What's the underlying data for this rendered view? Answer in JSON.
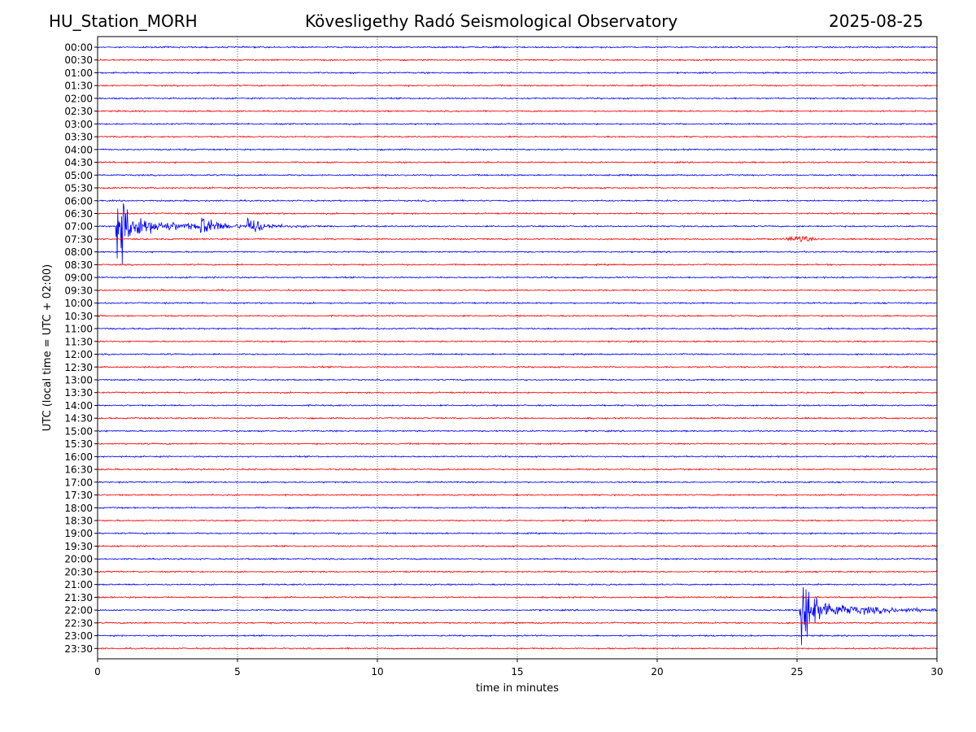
{
  "header": {
    "station": "HU_Station_MORH",
    "observatory": "Kövesligethy Radó Seismological Observatory",
    "date": "2025-08-25"
  },
  "chart_data": {
    "type": "line",
    "title": "Kövesligethy Radó Seismological Observatory",
    "xlabel": "time in minutes",
    "ylabel": "UTC (local time = UTC + 02:00)",
    "xlim": [
      0,
      30
    ],
    "xticks": [
      0,
      5,
      10,
      15,
      20,
      25,
      30
    ],
    "grid": "vertical dotted lines at x = 5, 10, 15, 20, 25",
    "trace_labels": [
      "00:00",
      "00:30",
      "01:00",
      "01:30",
      "02:00",
      "02:30",
      "03:00",
      "03:30",
      "04:00",
      "04:30",
      "05:00",
      "05:30",
      "06:00",
      "06:30",
      "07:00",
      "07:30",
      "08:00",
      "08:30",
      "09:00",
      "09:30",
      "10:00",
      "10:30",
      "11:00",
      "11:30",
      "12:00",
      "12:30",
      "13:00",
      "13:30",
      "14:00",
      "14:30",
      "15:00",
      "15:30",
      "16:00",
      "16:30",
      "17:00",
      "17:30",
      "18:00",
      "18:30",
      "19:00",
      "19:30",
      "20:00",
      "20:30",
      "21:00",
      "21:30",
      "22:00",
      "22:30",
      "23:00",
      "23:30"
    ],
    "trace_colors": [
      "#0000ff",
      "#ff0000"
    ],
    "events": [
      {
        "trace": "07:00",
        "start_min": 0.65,
        "end_min": 8.5,
        "peak_amplitude": "high",
        "secondary_bursts_min": [
          3.8,
          5.5
        ]
      },
      {
        "trace": "07:30",
        "start_min": 24.5,
        "end_min": 25.7,
        "peak_amplitude": "low"
      },
      {
        "trace": "22:00",
        "start_min": 25.1,
        "end_min": 30,
        "peak_amplitude": "high"
      }
    ]
  }
}
